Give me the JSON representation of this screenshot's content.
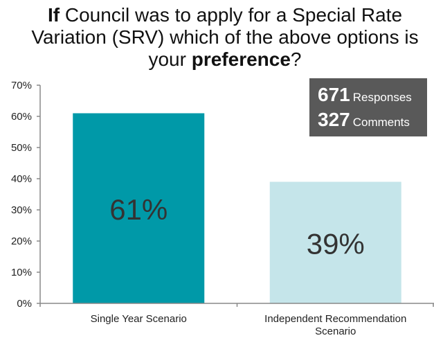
{
  "title": {
    "part1": "If",
    "part2": " Council was to apply for a Special Rate Variation (SRV) which of the above options is your ",
    "part3": "preference",
    "part4": "?"
  },
  "stats": {
    "responses_value": "671",
    "responses_label": "Responses",
    "comments_value": "327",
    "comments_label": "Comments"
  },
  "chart_data": {
    "type": "bar",
    "categories": [
      [
        "Single Year Scenario"
      ],
      [
        "Independent Recommendation",
        "Scenario"
      ]
    ],
    "values": [
      61,
      39
    ],
    "data_labels": [
      "61%",
      "39%"
    ],
    "colors": [
      "#0099a8",
      "#c5e5ea"
    ],
    "ylim": [
      0,
      70
    ],
    "yticks": [
      "0%",
      "10%",
      "20%",
      "30%",
      "40%",
      "50%",
      "60%",
      "70%"
    ],
    "grid": false,
    "xlabel": "",
    "ylabel": ""
  }
}
